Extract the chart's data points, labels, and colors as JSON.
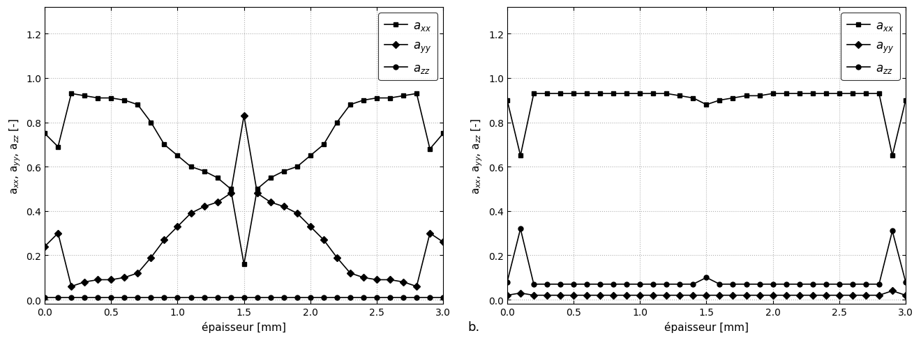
{
  "left": {
    "x_axx": [
      0,
      0.1,
      0.2,
      0.3,
      0.4,
      0.5,
      0.6,
      0.7,
      0.8,
      0.9,
      1.0,
      1.1,
      1.2,
      1.3,
      1.4,
      1.5,
      1.6,
      1.7,
      1.8,
      1.9,
      2.0,
      2.1,
      2.2,
      2.3,
      2.4,
      2.5,
      2.6,
      2.7,
      2.8,
      2.9,
      3.0
    ],
    "y_axx": [
      0.75,
      0.69,
      0.93,
      0.92,
      0.91,
      0.91,
      0.9,
      0.88,
      0.8,
      0.7,
      0.65,
      0.6,
      0.58,
      0.55,
      0.5,
      0.16,
      0.5,
      0.55,
      0.58,
      0.6,
      0.65,
      0.7,
      0.8,
      0.88,
      0.9,
      0.91,
      0.91,
      0.92,
      0.93,
      0.68,
      0.75
    ],
    "x_ayy": [
      0,
      0.1,
      0.2,
      0.3,
      0.4,
      0.5,
      0.6,
      0.7,
      0.8,
      0.9,
      1.0,
      1.1,
      1.2,
      1.3,
      1.4,
      1.5,
      1.6,
      1.7,
      1.8,
      1.9,
      2.0,
      2.1,
      2.2,
      2.3,
      2.4,
      2.5,
      2.6,
      2.7,
      2.8,
      2.9,
      3.0
    ],
    "y_ayy": [
      0.24,
      0.3,
      0.06,
      0.08,
      0.09,
      0.09,
      0.1,
      0.12,
      0.19,
      0.27,
      0.33,
      0.39,
      0.42,
      0.44,
      0.48,
      0.83,
      0.48,
      0.44,
      0.42,
      0.39,
      0.33,
      0.27,
      0.19,
      0.12,
      0.1,
      0.09,
      0.09,
      0.08,
      0.06,
      0.3,
      0.26
    ],
    "x_azz": [
      0,
      0.1,
      0.2,
      0.3,
      0.4,
      0.5,
      0.6,
      0.7,
      0.8,
      0.9,
      1.0,
      1.1,
      1.2,
      1.3,
      1.4,
      1.5,
      1.6,
      1.7,
      1.8,
      1.9,
      2.0,
      2.1,
      2.2,
      2.3,
      2.4,
      2.5,
      2.6,
      2.7,
      2.8,
      2.9,
      3.0
    ],
    "y_azz": [
      0.01,
      0.01,
      0.01,
      0.01,
      0.01,
      0.01,
      0.01,
      0.01,
      0.01,
      0.01,
      0.01,
      0.01,
      0.01,
      0.01,
      0.01,
      0.01,
      0.01,
      0.01,
      0.01,
      0.01,
      0.01,
      0.01,
      0.01,
      0.01,
      0.01,
      0.01,
      0.01,
      0.01,
      0.01,
      0.01,
      0.01
    ]
  },
  "right": {
    "x_axx": [
      0,
      0.1,
      0.2,
      0.3,
      0.4,
      0.5,
      0.6,
      0.7,
      0.8,
      0.9,
      1.0,
      1.1,
      1.2,
      1.3,
      1.4,
      1.5,
      1.6,
      1.7,
      1.8,
      1.9,
      2.0,
      2.1,
      2.2,
      2.3,
      2.4,
      2.5,
      2.6,
      2.7,
      2.8,
      2.9,
      3.0
    ],
    "y_axx": [
      0.9,
      0.65,
      0.93,
      0.93,
      0.93,
      0.93,
      0.93,
      0.93,
      0.93,
      0.93,
      0.93,
      0.93,
      0.93,
      0.92,
      0.91,
      0.88,
      0.9,
      0.91,
      0.92,
      0.92,
      0.93,
      0.93,
      0.93,
      0.93,
      0.93,
      0.93,
      0.93,
      0.93,
      0.93,
      0.65,
      0.9
    ],
    "x_ayy": [
      0,
      0.1,
      0.2,
      0.3,
      0.4,
      0.5,
      0.6,
      0.7,
      0.8,
      0.9,
      1.0,
      1.1,
      1.2,
      1.3,
      1.4,
      1.5,
      1.6,
      1.7,
      1.8,
      1.9,
      2.0,
      2.1,
      2.2,
      2.3,
      2.4,
      2.5,
      2.6,
      2.7,
      2.8,
      2.9,
      3.0
    ],
    "y_ayy": [
      0.02,
      0.03,
      0.02,
      0.02,
      0.02,
      0.02,
      0.02,
      0.02,
      0.02,
      0.02,
      0.02,
      0.02,
      0.02,
      0.02,
      0.02,
      0.02,
      0.02,
      0.02,
      0.02,
      0.02,
      0.02,
      0.02,
      0.02,
      0.02,
      0.02,
      0.02,
      0.02,
      0.02,
      0.02,
      0.04,
      0.02
    ],
    "x_azz": [
      0,
      0.1,
      0.2,
      0.3,
      0.4,
      0.5,
      0.6,
      0.7,
      0.8,
      0.9,
      1.0,
      1.1,
      1.2,
      1.3,
      1.4,
      1.5,
      1.6,
      1.7,
      1.8,
      1.9,
      2.0,
      2.1,
      2.2,
      2.3,
      2.4,
      2.5,
      2.6,
      2.7,
      2.8,
      2.9,
      3.0
    ],
    "y_azz": [
      0.08,
      0.32,
      0.07,
      0.07,
      0.07,
      0.07,
      0.07,
      0.07,
      0.07,
      0.07,
      0.07,
      0.07,
      0.07,
      0.07,
      0.07,
      0.1,
      0.07,
      0.07,
      0.07,
      0.07,
      0.07,
      0.07,
      0.07,
      0.07,
      0.07,
      0.07,
      0.07,
      0.07,
      0.07,
      0.31,
      0.08
    ]
  },
  "ylabel": "a$_{xx}$, a$_{yy}$, a$_{zz}$ [-]",
  "xlabel": "épaisseur [mm]",
  "ylim": [
    -0.02,
    1.32
  ],
  "xlim": [
    0,
    3.0
  ],
  "yticks": [
    0,
    0.2,
    0.4,
    0.6,
    0.8,
    1.0,
    1.2
  ],
  "xticks": [
    0,
    0.5,
    1.0,
    1.5,
    2.0,
    2.5,
    3.0
  ],
  "color": "#000000",
  "marker_axx": "s",
  "marker_ayy": "D",
  "marker_azz": "o",
  "marker_size": 5,
  "line_width": 1.2,
  "annotation_b": "b.",
  "background": "#ffffff",
  "grid_color": "#b0b0b0",
  "grid_style": ":"
}
